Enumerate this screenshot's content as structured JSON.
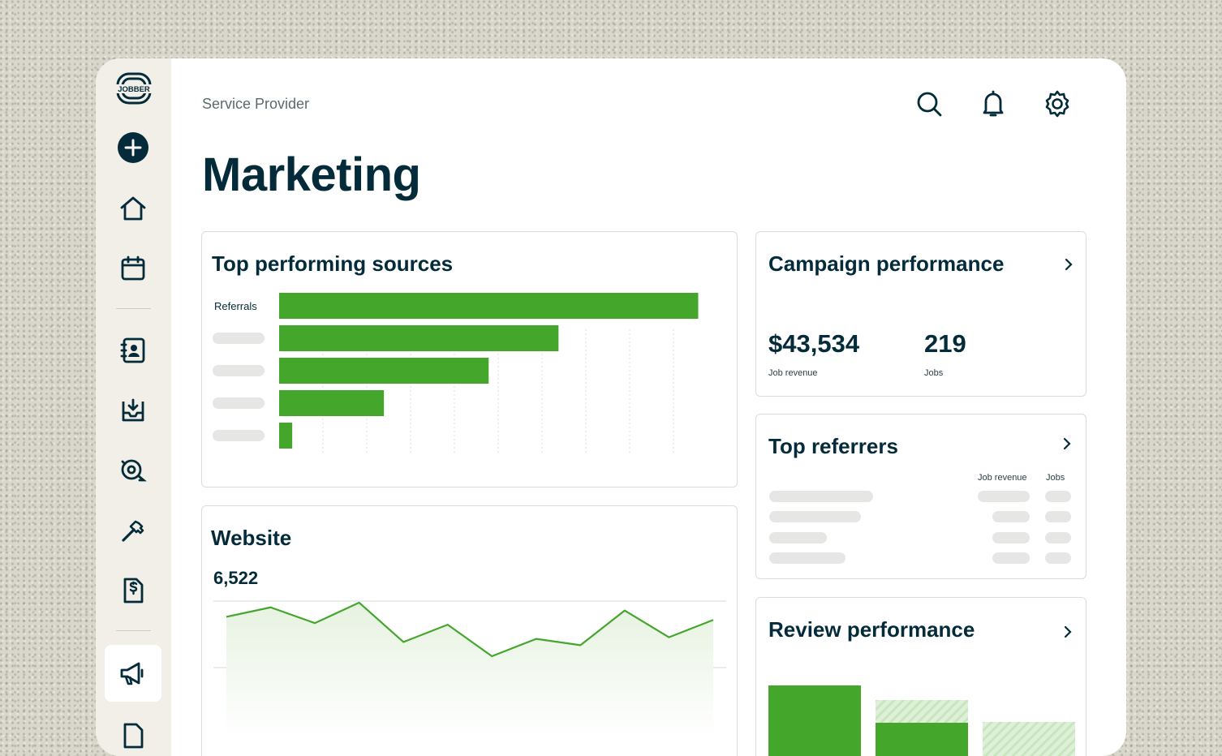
{
  "brand": {
    "logo_text": "JOBBER"
  },
  "header": {
    "breadcrumb": "Service Provider",
    "title": "Marketing"
  },
  "top_sources": {
    "title": "Top performing sources",
    "first_label": "Referrals",
    "bar_color": "#44a62b",
    "chart_data": {
      "type": "bar",
      "orientation": "horizontal",
      "categories": [
        "Referrals",
        "",
        "",
        "",
        ""
      ],
      "values": [
        96,
        64,
        48,
        24,
        3
      ],
      "xlim": [
        0,
        100
      ]
    }
  },
  "website": {
    "title": "Website",
    "value": "6,522",
    "line_color": "#44a62b",
    "chart_data": {
      "type": "area",
      "x": [
        1,
        2,
        3,
        4,
        5,
        6,
        7,
        8,
        9,
        10,
        11,
        12
      ],
      "values": [
        62,
        68,
        58,
        71,
        46,
        57,
        37,
        48,
        44,
        66,
        49,
        60
      ],
      "ylim": [
        20,
        90
      ]
    }
  },
  "campaign": {
    "title": "Campaign performance",
    "revenue_value": "$43,534",
    "revenue_label": "Job revenue",
    "jobs_value": "219",
    "jobs_label": "Jobs"
  },
  "referrers": {
    "title": "Top referrers",
    "col_revenue": "Job revenue",
    "col_jobs": "Jobs"
  },
  "reviews": {
    "title": "Review performance"
  },
  "colors": {
    "brand_dark": "#032b3a",
    "accent_green": "#44a62b",
    "skeleton": "#e6e6e4"
  }
}
